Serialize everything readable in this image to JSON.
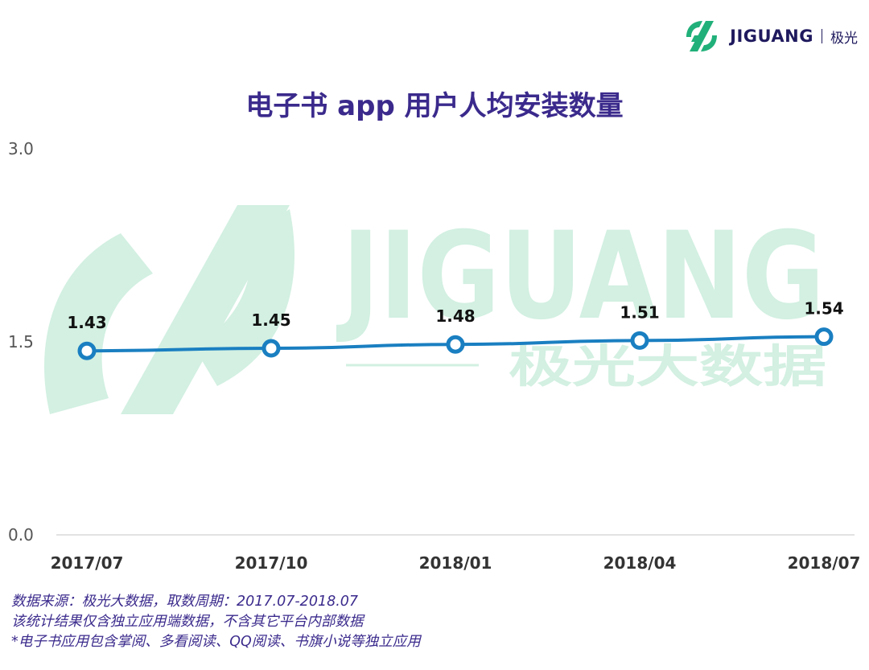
{
  "brand": {
    "logo_text": "JIGUANG",
    "logo_cn": "极光",
    "watermark_text": "JIGUANG",
    "watermark_cn": "极光大数据",
    "accent_color": "#21b07a",
    "watermark_color": "#d3f0e2",
    "logo_icon": "jiguang-logo-icon"
  },
  "chart_data": {
    "type": "line",
    "title": "电子书 app 用户人均安装数量",
    "categories": [
      "2017/07",
      "2017/10",
      "2018/01",
      "2018/04",
      "2018/07"
    ],
    "values": [
      1.43,
      1.45,
      1.48,
      1.51,
      1.54
    ],
    "data_labels": [
      "1.43",
      "1.45",
      "1.48",
      "1.51",
      "1.54"
    ],
    "y_ticks": [
      "0.0",
      "1.5",
      "3.0"
    ],
    "ylim": [
      0,
      3.0
    ],
    "line_color": "#1a7fc1",
    "grid": false
  },
  "footnotes": [
    "数据来源：极光大数据，取数周期：2017.07-2018.07",
    "该统计结果仅含独立应用端数据，不含其它平台内部数据",
    "*电子书应用包含掌阅、多看阅读、QQ阅读、书旗小说等独立应用"
  ]
}
